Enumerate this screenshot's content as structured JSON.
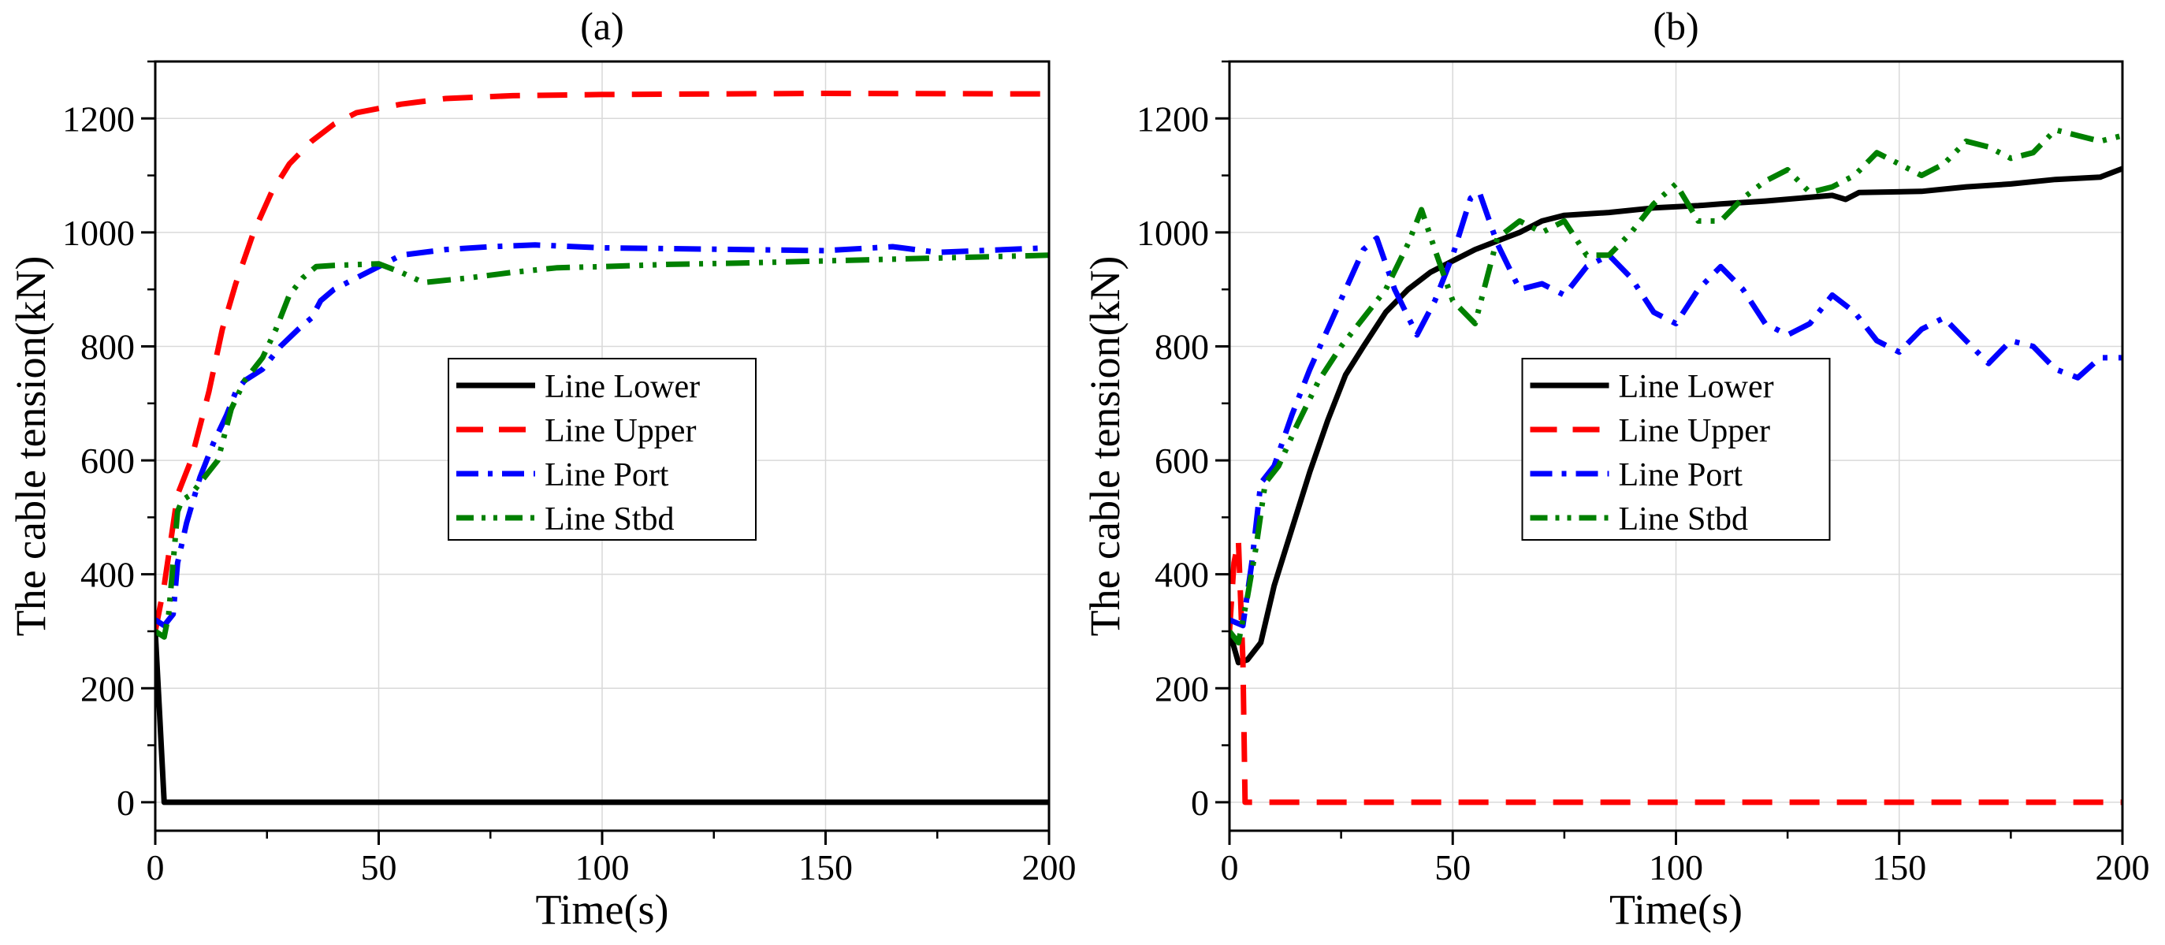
{
  "figure": {
    "panels": [
      "a",
      "b"
    ]
  },
  "chart_data": [
    {
      "type": "line",
      "title": "(a)",
      "xlabel": "Time(s)",
      "ylabel": "The cable tension(kN)",
      "xlim": [
        0,
        200
      ],
      "ylim": [
        -50,
        1300
      ],
      "xticks": [
        0,
        50,
        100,
        150,
        200
      ],
      "yticks": [
        0,
        200,
        400,
        600,
        800,
        1000,
        1200
      ],
      "grid": true,
      "legend_position": "center",
      "series": [
        {
          "name": "Line Lower",
          "color": "#000000",
          "style": "solid",
          "points": [
            [
              0,
              300
            ],
            [
              1,
              150
            ],
            [
              2,
              0
            ],
            [
              200,
              0
            ]
          ]
        },
        {
          "name": "Line Upper",
          "color": "#ff0000",
          "style": "dash",
          "points": [
            [
              0,
              300
            ],
            [
              2,
              380
            ],
            [
              5,
              540
            ],
            [
              8,
              600
            ],
            [
              12,
              720
            ],
            [
              15,
              830
            ],
            [
              18,
              910
            ],
            [
              22,
              1000
            ],
            [
              26,
              1070
            ],
            [
              30,
              1120
            ],
            [
              35,
              1160
            ],
            [
              40,
              1190
            ],
            [
              45,
              1210
            ],
            [
              55,
              1225
            ],
            [
              65,
              1235
            ],
            [
              80,
              1240
            ],
            [
              100,
              1242
            ],
            [
              150,
              1244
            ],
            [
              200,
              1243
            ]
          ]
        },
        {
          "name": "Line Port",
          "color": "#0000ff",
          "style": "dashdot",
          "points": [
            [
              0,
              320
            ],
            [
              2,
              310
            ],
            [
              4,
              330
            ],
            [
              5,
              420
            ],
            [
              7,
              490
            ],
            [
              10,
              570
            ],
            [
              13,
              630
            ],
            [
              16,
              680
            ],
            [
              18,
              720
            ],
            [
              20,
              740
            ],
            [
              24,
              760
            ],
            [
              28,
              800
            ],
            [
              32,
              830
            ],
            [
              35,
              850
            ],
            [
              37,
              880
            ],
            [
              40,
              900
            ],
            [
              45,
              920
            ],
            [
              50,
              940
            ],
            [
              55,
              960
            ],
            [
              65,
              970
            ],
            [
              75,
              975
            ],
            [
              85,
              978
            ],
            [
              100,
              973
            ],
            [
              150,
              968
            ],
            [
              165,
              975
            ],
            [
              175,
              965
            ],
            [
              200,
              973
            ]
          ]
        },
        {
          "name": "Line Stbd",
          "color": "#008000",
          "style": "dashdotdot",
          "points": [
            [
              0,
              300
            ],
            [
              2,
              290
            ],
            [
              3,
              330
            ],
            [
              5,
              510
            ],
            [
              6,
              530
            ],
            [
              8,
              540
            ],
            [
              10,
              560
            ],
            [
              12,
              580
            ],
            [
              14,
              600
            ],
            [
              17,
              690
            ],
            [
              20,
              740
            ],
            [
              24,
              780
            ],
            [
              27,
              830
            ],
            [
              30,
              890
            ],
            [
              33,
              920
            ],
            [
              36,
              940
            ],
            [
              40,
              942
            ],
            [
              50,
              945
            ],
            [
              55,
              930
            ],
            [
              60,
              912
            ],
            [
              70,
              920
            ],
            [
              80,
              930
            ],
            [
              90,
              938
            ],
            [
              100,
              940
            ],
            [
              115,
              944
            ],
            [
              130,
              946
            ],
            [
              150,
              950
            ],
            [
              175,
              955
            ],
            [
              200,
              960
            ]
          ]
        }
      ]
    },
    {
      "type": "line",
      "title": "(b)",
      "xlabel": "Time(s)",
      "ylabel": "The cable tension(kN)",
      "xlim": [
        0,
        200
      ],
      "ylim": [
        -50,
        1300
      ],
      "xticks": [
        0,
        50,
        100,
        150,
        200
      ],
      "yticks": [
        0,
        200,
        400,
        600,
        800,
        1000,
        1200
      ],
      "grid": true,
      "legend_position": "center",
      "series": [
        {
          "name": "Line Lower",
          "color": "#000000",
          "style": "solid",
          "points": [
            [
              0,
              300
            ],
            [
              2,
              245
            ],
            [
              4,
              250
            ],
            [
              7,
              280
            ],
            [
              10,
              380
            ],
            [
              14,
              480
            ],
            [
              18,
              580
            ],
            [
              22,
              670
            ],
            [
              26,
              750
            ],
            [
              30,
              800
            ],
            [
              35,
              860
            ],
            [
              40,
              900
            ],
            [
              45,
              930
            ],
            [
              50,
              950
            ],
            [
              55,
              970
            ],
            [
              60,
              985
            ],
            [
              65,
              1000
            ],
            [
              70,
              1020
            ],
            [
              75,
              1030
            ],
            [
              85,
              1035
            ],
            [
              95,
              1043
            ],
            [
              105,
              1047
            ],
            [
              110,
              1050
            ],
            [
              120,
              1055
            ],
            [
              135,
              1065
            ],
            [
              138,
              1058
            ],
            [
              141,
              1070
            ],
            [
              155,
              1072
            ],
            [
              165,
              1080
            ],
            [
              175,
              1085
            ],
            [
              185,
              1093
            ],
            [
              195,
              1097
            ],
            [
              200,
              1112
            ]
          ]
        },
        {
          "name": "Line Upper",
          "color": "#ff0000",
          "style": "dash",
          "points": [
            [
              0,
              300
            ],
            [
              1,
              420
            ],
            [
              2,
              460
            ],
            [
              3,
              250
            ],
            [
              3.5,
              0
            ],
            [
              200,
              0
            ]
          ]
        },
        {
          "name": "Line Port",
          "color": "#0000ff",
          "style": "dashdot",
          "points": [
            [
              0,
              320
            ],
            [
              3,
              310
            ],
            [
              5,
              420
            ],
            [
              7,
              560
            ],
            [
              10,
              590
            ],
            [
              14,
              680
            ],
            [
              18,
              760
            ],
            [
              22,
              830
            ],
            [
              26,
              900
            ],
            [
              30,
              970
            ],
            [
              33,
              990
            ],
            [
              37,
              900
            ],
            [
              42,
              820
            ],
            [
              46,
              880
            ],
            [
              50,
              960
            ],
            [
              54,
              1060
            ],
            [
              56,
              1070
            ],
            [
              60,
              980
            ],
            [
              65,
              900
            ],
            [
              70,
              910
            ],
            [
              75,
              890
            ],
            [
              80,
              940
            ],
            [
              85,
              960
            ],
            [
              90,
              920
            ],
            [
              95,
              860
            ],
            [
              100,
              840
            ],
            [
              105,
              900
            ],
            [
              110,
              940
            ],
            [
              115,
              900
            ],
            [
              120,
              840
            ],
            [
              125,
              820
            ],
            [
              130,
              840
            ],
            [
              135,
              890
            ],
            [
              140,
              860
            ],
            [
              145,
              810
            ],
            [
              150,
              790
            ],
            [
              155,
              830
            ],
            [
              160,
              850
            ],
            [
              165,
              810
            ],
            [
              170,
              770
            ],
            [
              175,
              810
            ],
            [
              180,
              800
            ],
            [
              185,
              760
            ],
            [
              190,
              745
            ],
            [
              195,
              780
            ],
            [
              200,
              780
            ]
          ]
        },
        {
          "name": "Line Stbd",
          "color": "#008000",
          "style": "dashdotdot",
          "points": [
            [
              0,
              300
            ],
            [
              2,
              280
            ],
            [
              4,
              360
            ],
            [
              6,
              450
            ],
            [
              8,
              560
            ],
            [
              11,
              590
            ],
            [
              15,
              660
            ],
            [
              20,
              740
            ],
            [
              25,
              800
            ],
            [
              30,
              850
            ],
            [
              35,
              900
            ],
            [
              40,
              980
            ],
            [
              43,
              1040
            ],
            [
              46,
              970
            ],
            [
              50,
              880
            ],
            [
              55,
              840
            ],
            [
              60,
              990
            ],
            [
              65,
              1020
            ],
            [
              70,
              1000
            ],
            [
              75,
              1020
            ],
            [
              80,
              960
            ],
            [
              85,
              960
            ],
            [
              90,
              1000
            ],
            [
              95,
              1050
            ],
            [
              100,
              1085
            ],
            [
              105,
              1020
            ],
            [
              110,
              1020
            ],
            [
              115,
              1060
            ],
            [
              120,
              1090
            ],
            [
              125,
              1110
            ],
            [
              130,
              1070
            ],
            [
              135,
              1080
            ],
            [
              140,
              1100
            ],
            [
              145,
              1140
            ],
            [
              150,
              1120
            ],
            [
              155,
              1100
            ],
            [
              160,
              1120
            ],
            [
              165,
              1160
            ],
            [
              170,
              1150
            ],
            [
              175,
              1130
            ],
            [
              180,
              1140
            ],
            [
              185,
              1180
            ],
            [
              190,
              1170
            ],
            [
              195,
              1160
            ],
            [
              200,
              1170
            ]
          ]
        }
      ]
    }
  ]
}
